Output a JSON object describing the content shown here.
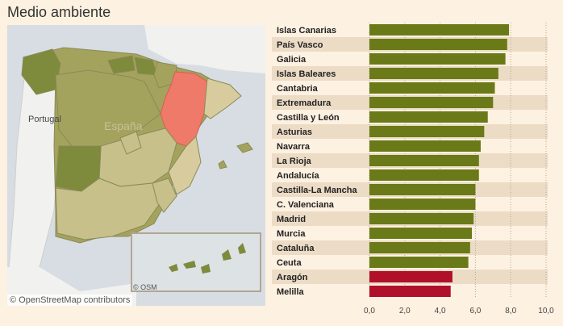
{
  "title": "Medio ambiente",
  "map": {
    "label_portugal": "Portugal",
    "label_espana": "España",
    "attribution": "© OpenStreetMap contributors",
    "inset_attribution": "© OSM",
    "highlight_color": "#ef7a6a",
    "region_colors": [
      "#7e8a3c",
      "#a4a35d",
      "#c7c08a",
      "#d8cc9f"
    ]
  },
  "chart_data": {
    "type": "bar",
    "orientation": "horizontal",
    "categories": [
      "Islas Canarias",
      "País Vasco",
      "Galicia",
      "Islas Baleares",
      "Cantabria",
      "Extremadura",
      "Castilla y León",
      "Asturias",
      "Navarra",
      "La Rioja",
      "Andalucía",
      "Castilla-La Mancha",
      "C. Valenciana",
      "Madrid",
      "Murcia",
      "Cataluña",
      "Ceuta",
      "Aragón",
      "Melilla"
    ],
    "values": [
      7.9,
      7.8,
      7.7,
      7.3,
      7.1,
      7.0,
      6.7,
      6.5,
      6.3,
      6.2,
      6.2,
      6.0,
      6.0,
      5.9,
      5.8,
      5.7,
      5.6,
      4.7,
      4.6
    ],
    "bar_colors": [
      "#6a7a18",
      "#6a7a18",
      "#6a7a18",
      "#6a7a18",
      "#6a7a18",
      "#6a7a18",
      "#6a7a18",
      "#6a7a18",
      "#6a7a18",
      "#6a7a18",
      "#6a7a18",
      "#6a7a18",
      "#6a7a18",
      "#6a7a18",
      "#6a7a18",
      "#6a7a18",
      "#6a7a18",
      "#b0102a",
      "#b0102a"
    ],
    "xlim": [
      0,
      10
    ],
    "x_ticks": [
      0,
      2,
      4,
      6,
      8,
      10
    ],
    "x_tick_labels": [
      "0,0",
      "2,0",
      "4,0",
      "6,0",
      "8,0",
      "10,0"
    ],
    "grid": "vertical dotted",
    "row_band_color": "#ecdcc6"
  }
}
